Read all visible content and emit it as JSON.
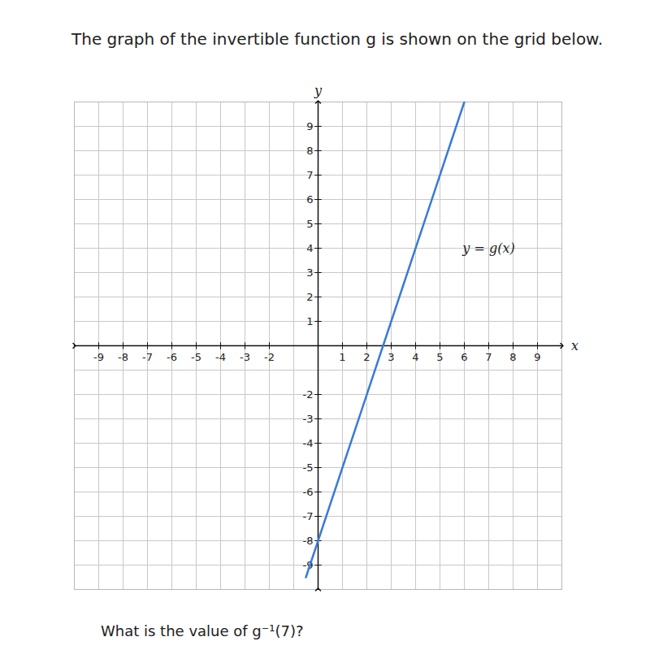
{
  "chart_data": {
    "type": "line",
    "title": "The graph of the invertible function g is shown on the grid below.",
    "caption": "What is the value of g⁻¹(7)?",
    "x_label": "x",
    "y_label": "y",
    "x": [
      -0.5,
      0,
      3,
      6
    ],
    "series": [
      {
        "color": "#3a7bd5",
        "values": [
          -9.5,
          -8,
          1,
          10
        ]
      }
    ],
    "xlim": [
      -10,
      10
    ],
    "ylim": [
      -10,
      10
    ],
    "xticks": [
      -9,
      -8,
      -7,
      -6,
      -5,
      -4,
      -3,
      -2,
      1,
      2,
      3,
      4,
      5,
      6,
      7,
      8,
      9
    ],
    "yticks": [
      -9,
      -8,
      -7,
      -6,
      -5,
      -4,
      -3,
      -2,
      1,
      2,
      3,
      4,
      5,
      6,
      7,
      8,
      9
    ],
    "grid": true,
    "annotations": [
      {
        "text": "y = g(x)",
        "x": 7,
        "y": 4
      }
    ]
  }
}
